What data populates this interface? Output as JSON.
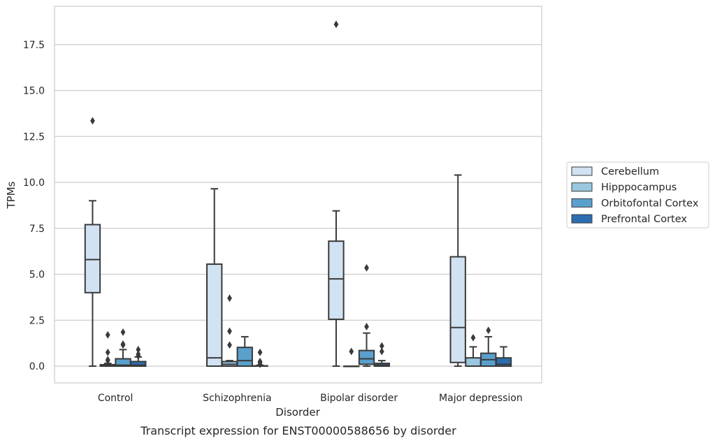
{
  "chart_data": {
    "type": "box",
    "caption": "Transcript expression for ENST00000588656 by disorder",
    "xlabel": "Disorder",
    "ylabel": "TPMs",
    "ylim": [
      -0.9,
      19.6
    ],
    "yticks": [
      0.0,
      2.5,
      5.0,
      7.5,
      10.0,
      12.5,
      15.0,
      17.5
    ],
    "ytick_labels": [
      "0.0",
      "2.5",
      "5.0",
      "7.5",
      "10.0",
      "12.5",
      "15.0",
      "17.5"
    ],
    "grid": "horizontal",
    "legend_position": "right",
    "categories": [
      "Control",
      "Schizophrenia",
      "Bipolar disorder",
      "Major depression"
    ],
    "series": [
      {
        "name": "Cerebellum",
        "color": "#d1e2f2",
        "boxes": [
          {
            "whisker_low": 0.0,
            "q1": 4.0,
            "median": 5.8,
            "q3": 7.7,
            "whisker_high": 9.0,
            "outliers": [
              13.35
            ]
          },
          {
            "whisker_low": 0.0,
            "q1": 0.0,
            "median": 0.45,
            "q3": 5.55,
            "whisker_high": 9.65,
            "outliers": []
          },
          {
            "whisker_low": 0.0,
            "q1": 2.55,
            "median": 4.75,
            "q3": 6.8,
            "whisker_high": 8.45,
            "outliers": [
              18.6
            ]
          },
          {
            "whisker_low": 0.0,
            "q1": 0.2,
            "median": 2.1,
            "q3": 5.95,
            "whisker_high": 10.4,
            "outliers": []
          }
        ]
      },
      {
        "name": "Hipppocampus",
        "color": "#9ac8e0",
        "boxes": [
          {
            "whisker_low": 0.0,
            "q1": 0.0,
            "median": 0.02,
            "q3": 0.08,
            "whisker_high": 0.15,
            "outliers": [
              0.3,
              0.35,
              0.75,
              1.7
            ]
          },
          {
            "whisker_low": 0.0,
            "q1": 0.0,
            "median": 0.1,
            "q3": 0.25,
            "whisker_high": 0.3,
            "outliers": [
              1.15,
              1.9,
              3.7
            ]
          },
          {
            "whisker_low": 0.0,
            "q1": 0.0,
            "median": 0.0,
            "q3": 0.0,
            "whisker_high": 0.0,
            "outliers": [
              0.8
            ]
          },
          {
            "whisker_low": 0.0,
            "q1": 0.0,
            "median": 0.0,
            "q3": 0.45,
            "whisker_high": 1.05,
            "outliers": [
              1.55
            ]
          }
        ]
      },
      {
        "name": "Orbitofontal Cortex",
        "color": "#5aa0cd",
        "boxes": [
          {
            "whisker_low": 0.0,
            "q1": 0.0,
            "median": 0.05,
            "q3": 0.4,
            "whisker_high": 0.9,
            "outliers": [
              1.15,
              1.2,
              1.85
            ]
          },
          {
            "whisker_low": 0.0,
            "q1": 0.0,
            "median": 0.3,
            "q3": 1.02,
            "whisker_high": 1.6,
            "outliers": []
          },
          {
            "whisker_low": 0.0,
            "q1": 0.1,
            "median": 0.4,
            "q3": 0.85,
            "whisker_high": 1.8,
            "outliers": [
              2.15,
              5.35
            ]
          },
          {
            "whisker_low": 0.0,
            "q1": 0.0,
            "median": 0.35,
            "q3": 0.7,
            "whisker_high": 1.6,
            "outliers": [
              1.95
            ]
          }
        ]
      },
      {
        "name": "Prefrontal Cortex",
        "color": "#2b6eb0",
        "boxes": [
          {
            "whisker_low": 0.0,
            "q1": 0.0,
            "median": 0.05,
            "q3": 0.25,
            "whisker_high": 0.5,
            "outliers": [
              0.55,
              0.65,
              0.9
            ]
          },
          {
            "whisker_low": 0.0,
            "q1": 0.0,
            "median": 0.0,
            "q3": 0.02,
            "whisker_high": 0.05,
            "outliers": [
              0.1,
              0.2,
              0.25,
              0.75
            ]
          },
          {
            "whisker_low": 0.0,
            "q1": 0.0,
            "median": 0.05,
            "q3": 0.15,
            "whisker_high": 0.3,
            "outliers": [
              0.8,
              1.1
            ]
          },
          {
            "whisker_low": 0.0,
            "q1": 0.0,
            "median": 0.1,
            "q3": 0.45,
            "whisker_high": 1.05,
            "outliers": []
          }
        ]
      }
    ]
  }
}
